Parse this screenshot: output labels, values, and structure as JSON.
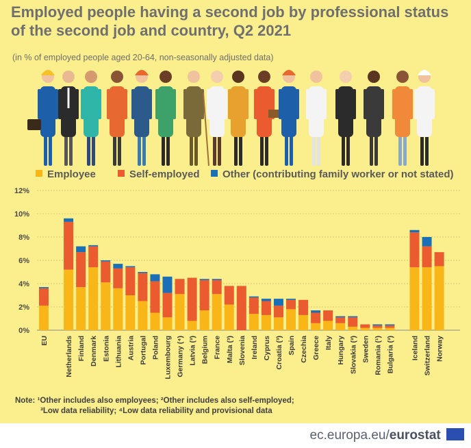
{
  "title": "Employed people having a second job by professional status of the second job and country, Q2 2021",
  "subtitle": "(in % of employed people aged 20-64, non-seasonally adjusted data)",
  "illustration_icon": "workers-illustration",
  "legend": {
    "employee": "Employee",
    "self_employed": "Self-employed",
    "other": "Other (contributing family worker or not stated)"
  },
  "colors": {
    "employee": "#f9b619",
    "self_employed": "#ea5b2f",
    "other": "#1a6fb6",
    "background": "#fbee8c"
  },
  "chart_data": {
    "type": "bar",
    "stacked": true,
    "categories": [
      "EU",
      "Netherlands",
      "Finland",
      "Denmark",
      "Estonia",
      "Lithuania",
      "Austria",
      "Portugal",
      "Poland",
      "Luxembourg",
      "Germany (⁴)",
      "Latvia (³)",
      "Belgium",
      "France",
      "Malta (³)",
      "Slovenia",
      "Ireland",
      "Cyprus",
      "Croatia (³)",
      "Spain",
      "Czechia",
      "Greece",
      "Italy",
      "Hungary",
      "Slovakia (³)",
      "Sweden",
      "Romania (¹)",
      "Bulgaria (³)",
      "Iceland",
      "Switzerland",
      "Norway"
    ],
    "series": [
      {
        "name": "Employee",
        "values": [
          2.1,
          5.2,
          3.7,
          5.4,
          4.1,
          3.6,
          3.0,
          2.5,
          1.5,
          1.1,
          3.1,
          0.8,
          1.7,
          3.1,
          2.2,
          0.0,
          1.4,
          1.3,
          1.1,
          1.8,
          1.3,
          0.6,
          0.8,
          0.6,
          0.3,
          0.2,
          0.2,
          0.2,
          5.4,
          5.4,
          5.5
        ]
      },
      {
        "name": "Self-employed",
        "values": [
          1.5,
          4.1,
          3.0,
          1.8,
          1.8,
          1.7,
          2.4,
          2.4,
          2.7,
          2.1,
          1.3,
          3.7,
          2.6,
          1.2,
          1.6,
          3.8,
          1.4,
          1.2,
          1.0,
          0.8,
          1.3,
          0.9,
          0.9,
          0.5,
          0.8,
          0.3,
          0.2,
          0.2,
          3.0,
          1.8,
          1.2
        ]
      },
      {
        "name": "Other (contributing family worker or not stated)",
        "values": [
          0.1,
          0.3,
          0.5,
          0.1,
          0.1,
          0.4,
          0.1,
          0.1,
          0.6,
          1.4,
          0.0,
          0.0,
          0.1,
          0.1,
          0.0,
          0.0,
          0.1,
          0.2,
          0.6,
          0.1,
          0.0,
          0.2,
          0.0,
          0.1,
          0.1,
          0.0,
          0.1,
          0.1,
          0.2,
          0.8,
          0.0
        ]
      }
    ],
    "groups": [
      [
        0
      ],
      [
        1,
        27
      ],
      [
        28,
        30
      ]
    ],
    "yticks": [
      "0%",
      "2%",
      "4%",
      "6%",
      "8%",
      "10%",
      "12%"
    ],
    "ylim": [
      0,
      12
    ],
    "grid": true
  },
  "note": {
    "line1": "Note:  ¹Other includes also employees; ²Other includes also self-employed;",
    "line2": "³Low data reliability; ⁴Low data reliability and provisional data"
  },
  "footer": {
    "site": "ec.europa.eu/",
    "brand": "eurostat"
  }
}
